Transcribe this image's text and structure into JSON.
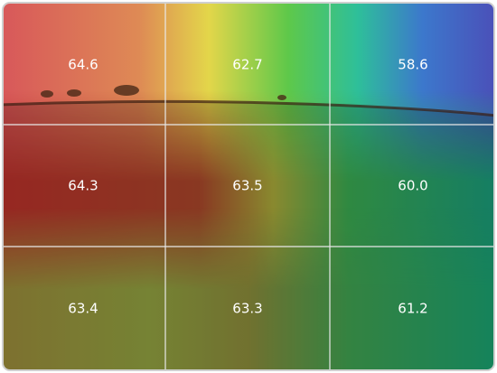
{
  "grid": {
    "rows": [
      [
        "64.6",
        "62.7",
        "58.6"
      ],
      [
        "64.3",
        "63.5",
        "60.0"
      ],
      [
        "63.4",
        "63.3",
        "61.2"
      ]
    ]
  }
}
